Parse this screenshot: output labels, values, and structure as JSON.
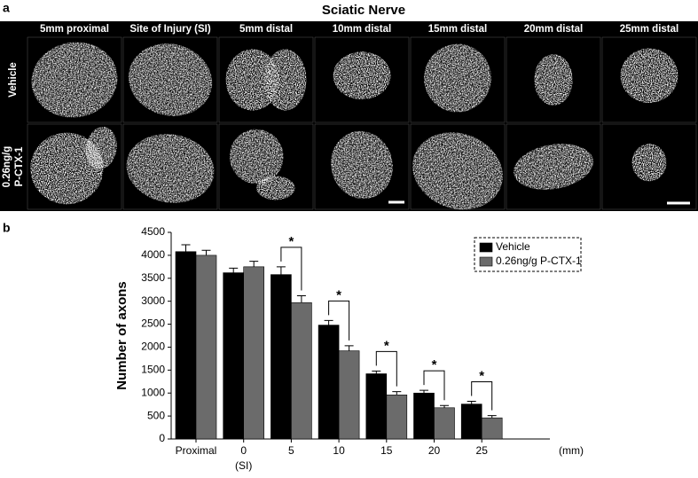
{
  "panel_labels": [
    "a",
    "b"
  ],
  "figure_a": {
    "title": "Sciatic Nerve",
    "columns": [
      "5mm proximal",
      "Site of Injury (SI)",
      "5mm distal",
      "10mm distal",
      "15mm distal",
      "20mm distal",
      "25mm distal"
    ],
    "rows": [
      [
        "Vehicle"
      ],
      [
        "0.26ng/g",
        "P-CTX-1"
      ]
    ]
  },
  "chart_data": {
    "type": "bar",
    "categories": [
      "Proximal",
      "0",
      "5",
      "10",
      "15",
      "20",
      "25"
    ],
    "x_note": "(SI)",
    "xlabel": "(mm)",
    "ylabel": "Number of axons",
    "ylim": [
      0,
      4500
    ],
    "yticks": [
      0,
      500,
      1000,
      1500,
      2000,
      2500,
      3000,
      3500,
      4000,
      4500
    ],
    "legend": "upper right",
    "series": [
      {
        "name": "Vehicle",
        "color": "#000000",
        "values": [
          4080,
          3620,
          3580,
          2480,
          1420,
          1000,
          760
        ],
        "errors": [
          150,
          100,
          170,
          100,
          60,
          60,
          60
        ]
      },
      {
        "name": "0.26ng/g P-CTX-1",
        "color": "#6b6b6b",
        "values": [
          4000,
          3750,
          2970,
          1920,
          960,
          680,
          460
        ],
        "errors": [
          110,
          120,
          150,
          110,
          70,
          50,
          50
        ]
      }
    ],
    "significance_labels": [
      null,
      null,
      "*",
      "*",
      "*",
      "*",
      "*"
    ]
  }
}
